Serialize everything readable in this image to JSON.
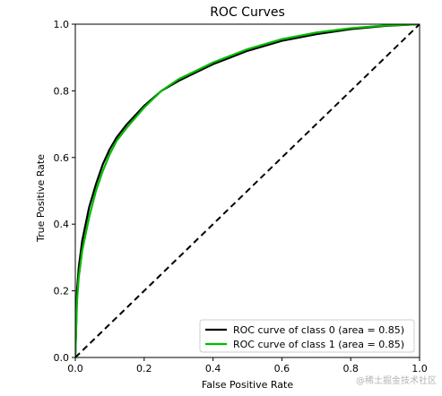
{
  "chart_data": {
    "type": "line",
    "title": "ROC Curves",
    "xlabel": "False Positive Rate",
    "ylabel": "True Positive Rate",
    "xlim": [
      0.0,
      1.0
    ],
    "ylim": [
      0.0,
      1.0
    ],
    "xticks": [
      "0.0",
      "0.2",
      "0.4",
      "0.6",
      "0.8",
      "1.0"
    ],
    "yticks": [
      "0.0",
      "0.2",
      "0.4",
      "0.6",
      "0.8",
      "1.0"
    ],
    "grid": false,
    "legend_position": "lower-right",
    "series": [
      {
        "name": "ROC curve of class 0 (area = 0.85)",
        "color": "#000000",
        "line_style": "solid",
        "x": [
          0.0,
          0.005,
          0.01,
          0.02,
          0.04,
          0.06,
          0.08,
          0.1,
          0.12,
          0.15,
          0.2,
          0.25,
          0.3,
          0.35,
          0.4,
          0.5,
          0.6,
          0.7,
          0.8,
          0.9,
          1.0
        ],
        "y": [
          0.0,
          0.2,
          0.27,
          0.35,
          0.45,
          0.52,
          0.58,
          0.625,
          0.66,
          0.7,
          0.755,
          0.8,
          0.83,
          0.855,
          0.88,
          0.92,
          0.95,
          0.97,
          0.985,
          0.995,
          1.0
        ]
      },
      {
        "name": "ROC curve of class 1 (area = 0.85)",
        "color": "#00bb00",
        "line_style": "solid",
        "x": [
          0.0,
          0.005,
          0.01,
          0.02,
          0.04,
          0.06,
          0.08,
          0.1,
          0.12,
          0.15,
          0.2,
          0.25,
          0.3,
          0.35,
          0.4,
          0.5,
          0.6,
          0.7,
          0.8,
          0.9,
          1.0
        ],
        "y": [
          0.0,
          0.17,
          0.24,
          0.32,
          0.42,
          0.5,
          0.56,
          0.61,
          0.65,
          0.69,
          0.75,
          0.8,
          0.835,
          0.86,
          0.885,
          0.925,
          0.955,
          0.975,
          0.988,
          0.996,
          1.0
        ]
      },
      {
        "color": "#000000",
        "line_style": "dashed",
        "x": [
          0.0,
          1.0
        ],
        "y": [
          0.0,
          1.0
        ]
      }
    ]
  },
  "watermark": {
    "text": "@稀土掘金技术社区"
  }
}
